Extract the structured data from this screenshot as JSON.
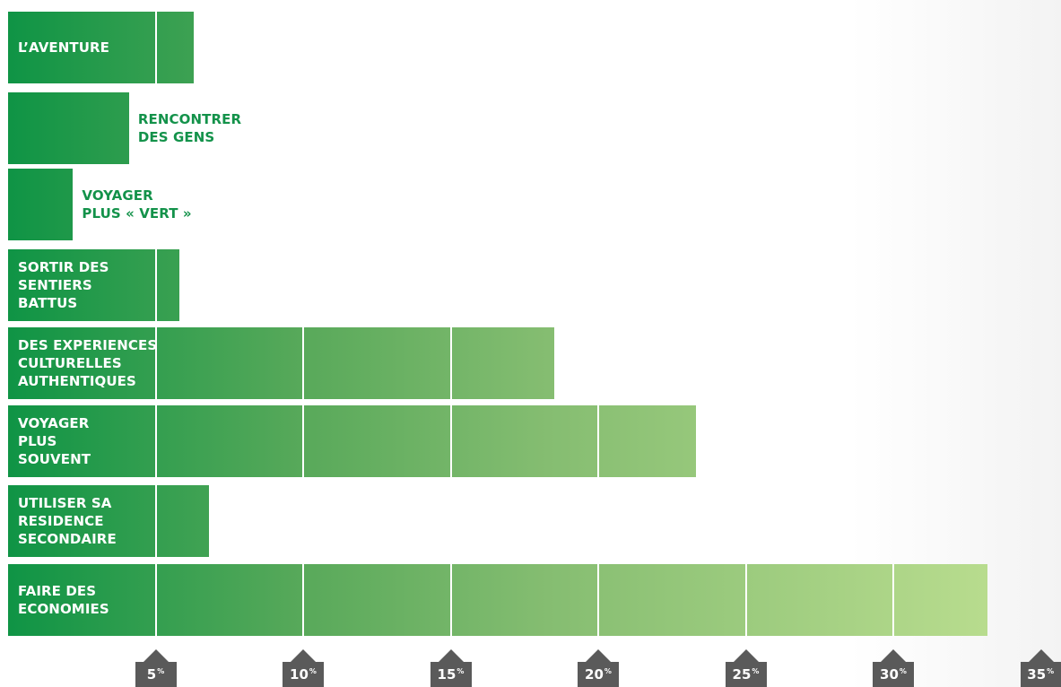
{
  "chart_data": {
    "type": "bar",
    "orientation": "horizontal",
    "categories": [
      "L’AVENTURE",
      "RENCONTRER\nDES GENS",
      "VOYAGER\nPLUS « VERT »",
      "SORTIR DES\nSENTIERS\nBATTUS",
      "DES EXPERIENCES\nCULTURELLES\nAUTHENTIQUES",
      "VOYAGER\nPLUS\nSOUVENT",
      "UTILISER SA\nRESIDENCE\nSECONDAIRE",
      "FAIRE DES\nECONOMIES"
    ],
    "values": [
      6.3,
      4.1,
      2.2,
      5.8,
      18.5,
      23.3,
      6.8,
      33.2
    ],
    "label_position": [
      "inside",
      "outside",
      "outside",
      "inside",
      "inside",
      "inside",
      "inside",
      "inside"
    ],
    "xlim": [
      0,
      35
    ],
    "xticks": [
      5,
      10,
      15,
      20,
      25,
      30,
      35
    ],
    "tick_labels": [
      "5",
      "10",
      "15",
      "20",
      "25",
      "30",
      "35"
    ],
    "tick_unit": "%",
    "grid": "segment dividers every 5%",
    "colors": {
      "bar_start": "#0f9445",
      "bar_end": "#b8dc8e",
      "outside_label": "#13924a",
      "tick_bg": "#5a5a5a"
    }
  }
}
